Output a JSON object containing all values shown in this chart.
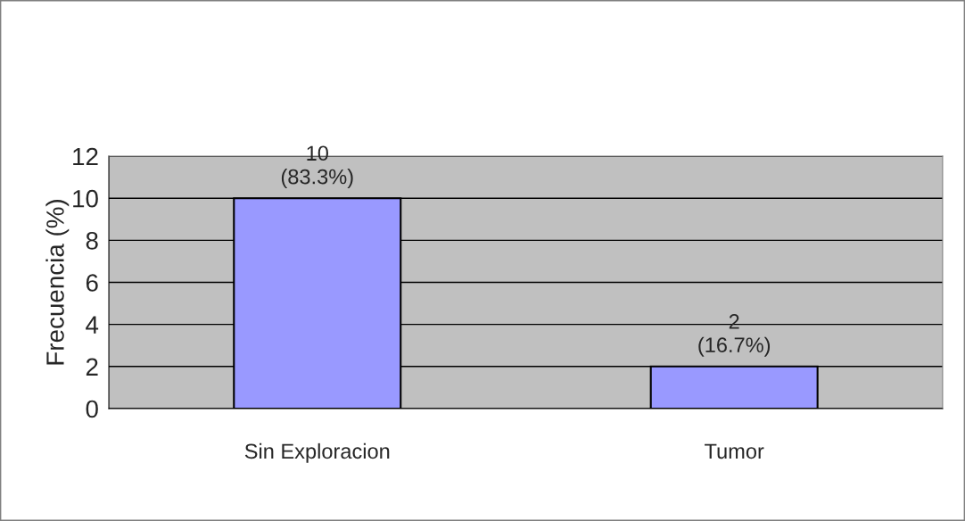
{
  "chart_data": {
    "type": "bar",
    "ylabel": "Frecuencia (%)",
    "categories": [
      "Sin Exploracion",
      "Tumor"
    ],
    "values": [
      10,
      2
    ],
    "color": "#9999ff",
    "value_labels": [
      "10\n(83.3%)",
      "2\n(16.7%)"
    ],
    "ylim": [
      0,
      12
    ],
    "yticks": [
      0,
      2,
      4,
      6,
      8,
      10,
      12
    ],
    "grid": "y",
    "legend": false
  }
}
